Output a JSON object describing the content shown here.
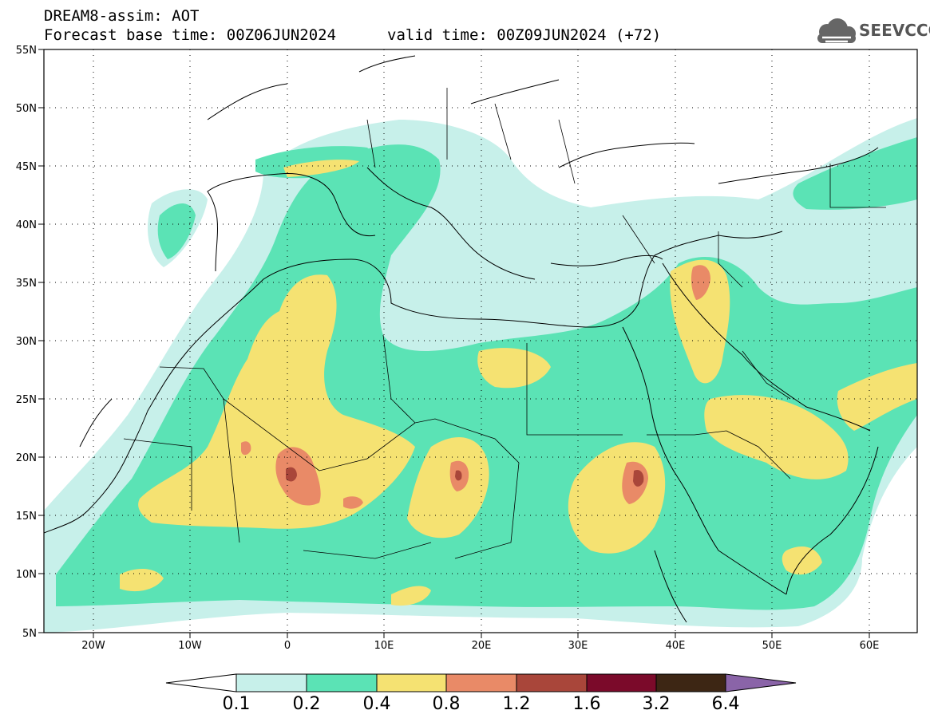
{
  "title": {
    "line1": "DREAM8-assim: AOT",
    "line2": "Forecast base time: 00Z06JUN2024",
    "valid": "valid time: 00Z09JUN2024 (+72)"
  },
  "logo": {
    "text": "SEEVCCC",
    "icon": "cloud-logo-icon"
  },
  "map": {
    "lon_range": [
      -25,
      65
    ],
    "lat_range": [
      5,
      55
    ],
    "lat_ticks": [
      "55N",
      "50N",
      "45N",
      "40N",
      "35N",
      "30N",
      "25N",
      "20N",
      "15N",
      "10N",
      "5N"
    ],
    "lon_ticks": [
      "20W",
      "10W",
      "0",
      "10E",
      "20E",
      "30E",
      "40E",
      "50E",
      "60E"
    ]
  },
  "colorbar": {
    "labels": [
      "0.1",
      "0.2",
      "0.4",
      "0.8",
      "1.2",
      "1.6",
      "3.2",
      "6.4"
    ],
    "colors": [
      "#ffffff",
      "#c7f0ea",
      "#5be3b5",
      "#f5e272",
      "#e98a67",
      "#a9463a",
      "#7b0a2a",
      "#3d2614",
      "#8a64a8"
    ]
  }
}
